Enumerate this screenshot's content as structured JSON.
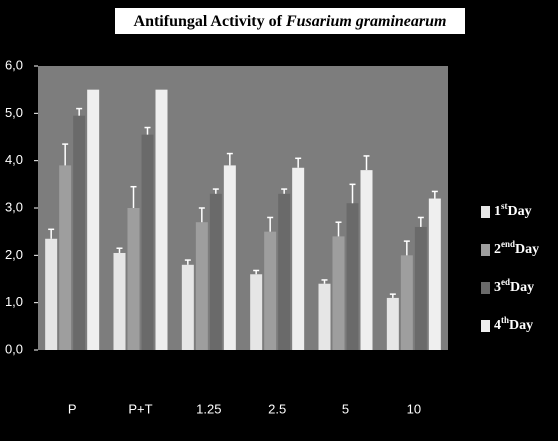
{
  "chart_data": {
    "type": "bar",
    "title": "Antifungal Activity of Fusarium graminearum",
    "categories": [
      "P",
      "P+T",
      "1.25",
      "2.5",
      "5",
      "10"
    ],
    "series": [
      {
        "name": "1stDay",
        "color": "#e6e6e6",
        "values": [
          2.35,
          2.05,
          1.8,
          1.6,
          1.4,
          1.1
        ],
        "errors": [
          0.2,
          0.1,
          0.1,
          0.08,
          0.08,
          0.08
        ]
      },
      {
        "name": "2endDay",
        "color": "#9e9e9e",
        "values": [
          3.9,
          3.0,
          2.7,
          2.5,
          2.4,
          2.0
        ],
        "errors": [
          0.45,
          0.45,
          0.3,
          0.3,
          0.3,
          0.3
        ]
      },
      {
        "name": "3edDay",
        "color": "#6a6a6a",
        "values": [
          4.95,
          4.55,
          3.3,
          3.3,
          3.1,
          2.6
        ],
        "errors": [
          0.15,
          0.15,
          0.1,
          0.1,
          0.4,
          0.2
        ]
      },
      {
        "name": "4thDay",
        "color": "#efefef",
        "values": [
          5.5,
          5.5,
          3.9,
          3.85,
          3.8,
          3.2
        ],
        "errors": [
          null,
          null,
          0.25,
          0.2,
          0.3,
          0.15
        ]
      }
    ],
    "ylim": [
      0,
      6
    ],
    "yticks": [
      {
        "value": 0,
        "label": "0,0"
      },
      {
        "value": 1,
        "label": "1,0"
      },
      {
        "value": 2,
        "label": "2,0"
      },
      {
        "value": 3,
        "label": "3,0"
      },
      {
        "value": 4,
        "label": "4,0"
      },
      {
        "value": 5,
        "label": "5,0"
      },
      {
        "value": 6,
        "label": "6,0"
      }
    ],
    "legend": "right"
  }
}
